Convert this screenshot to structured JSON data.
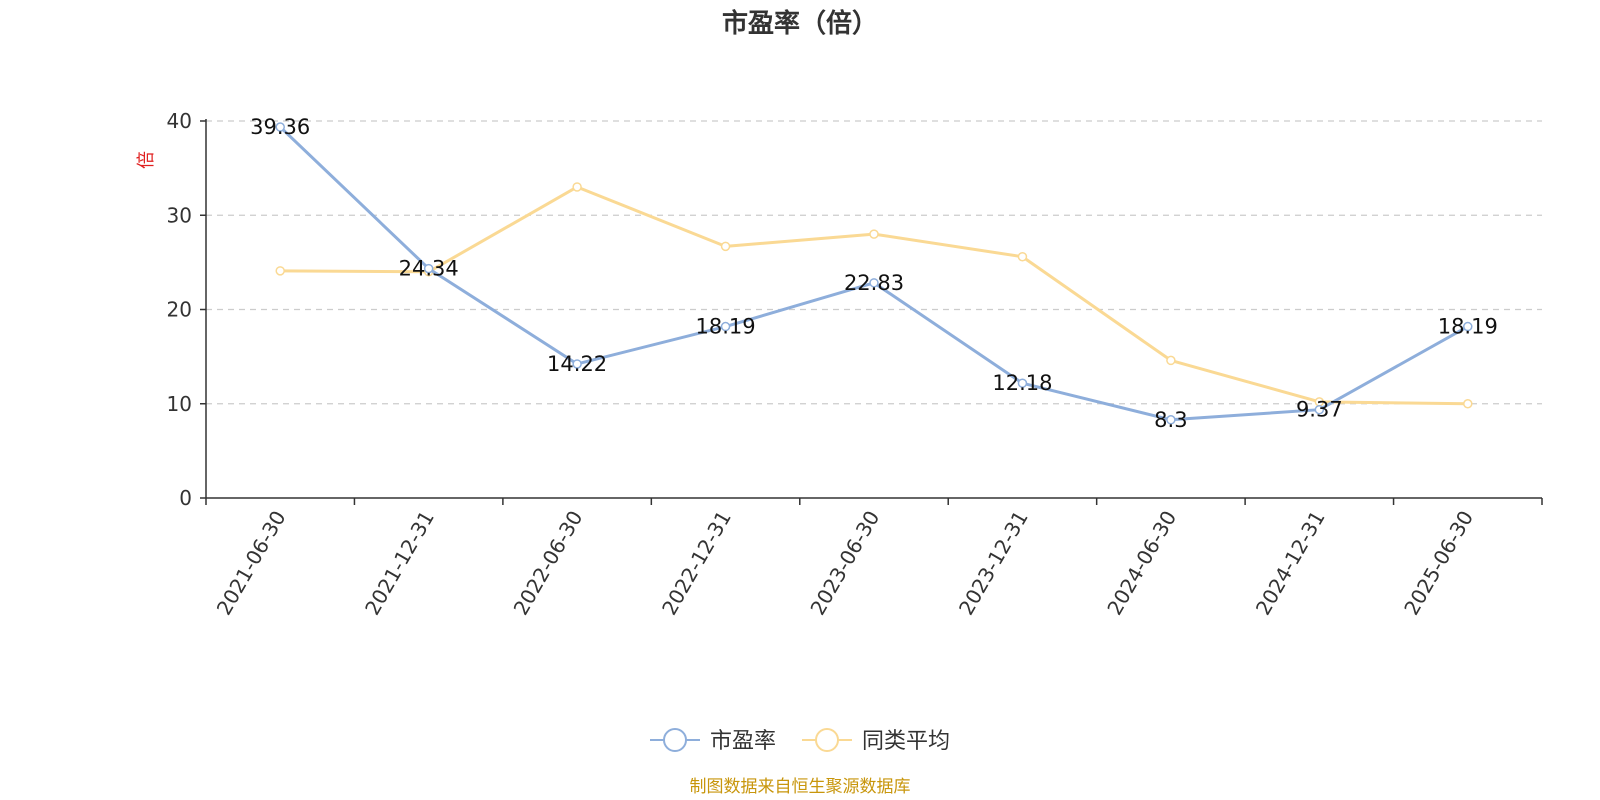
{
  "chart_data": {
    "type": "line",
    "title": "市盈率（倍）",
    "ylabel": "倍",
    "xlabel": "",
    "ylim": [
      0,
      40
    ],
    "yticks": [
      0,
      10,
      20,
      30,
      40
    ],
    "grid": true,
    "legend_position": "bottom",
    "categories": [
      "2021-06-30",
      "2021-12-31",
      "2022-06-30",
      "2022-12-31",
      "2023-06-30",
      "2023-12-31",
      "2024-06-30",
      "2024-12-31",
      "2025-06-30"
    ],
    "series": [
      {
        "name": "市盈率",
        "color": "#8eaedb",
        "values": [
          39.36,
          24.34,
          14.22,
          18.19,
          22.83,
          12.18,
          8.3,
          9.37,
          18.19
        ],
        "labels": [
          "39.36",
          "24.34",
          "14.22",
          "18.19",
          "22.83",
          "12.18",
          "8.3",
          "9.37",
          "18.19"
        ]
      },
      {
        "name": "同类平均",
        "color": "#fad994",
        "values": [
          24.1,
          24.0,
          33.0,
          26.7,
          28.0,
          25.6,
          14.6,
          10.2,
          10.0
        ]
      }
    ],
    "source": "制图数据来自恒生聚源数据库",
    "source_color": "#c8960c",
    "ylabel_color": "#e02020"
  }
}
